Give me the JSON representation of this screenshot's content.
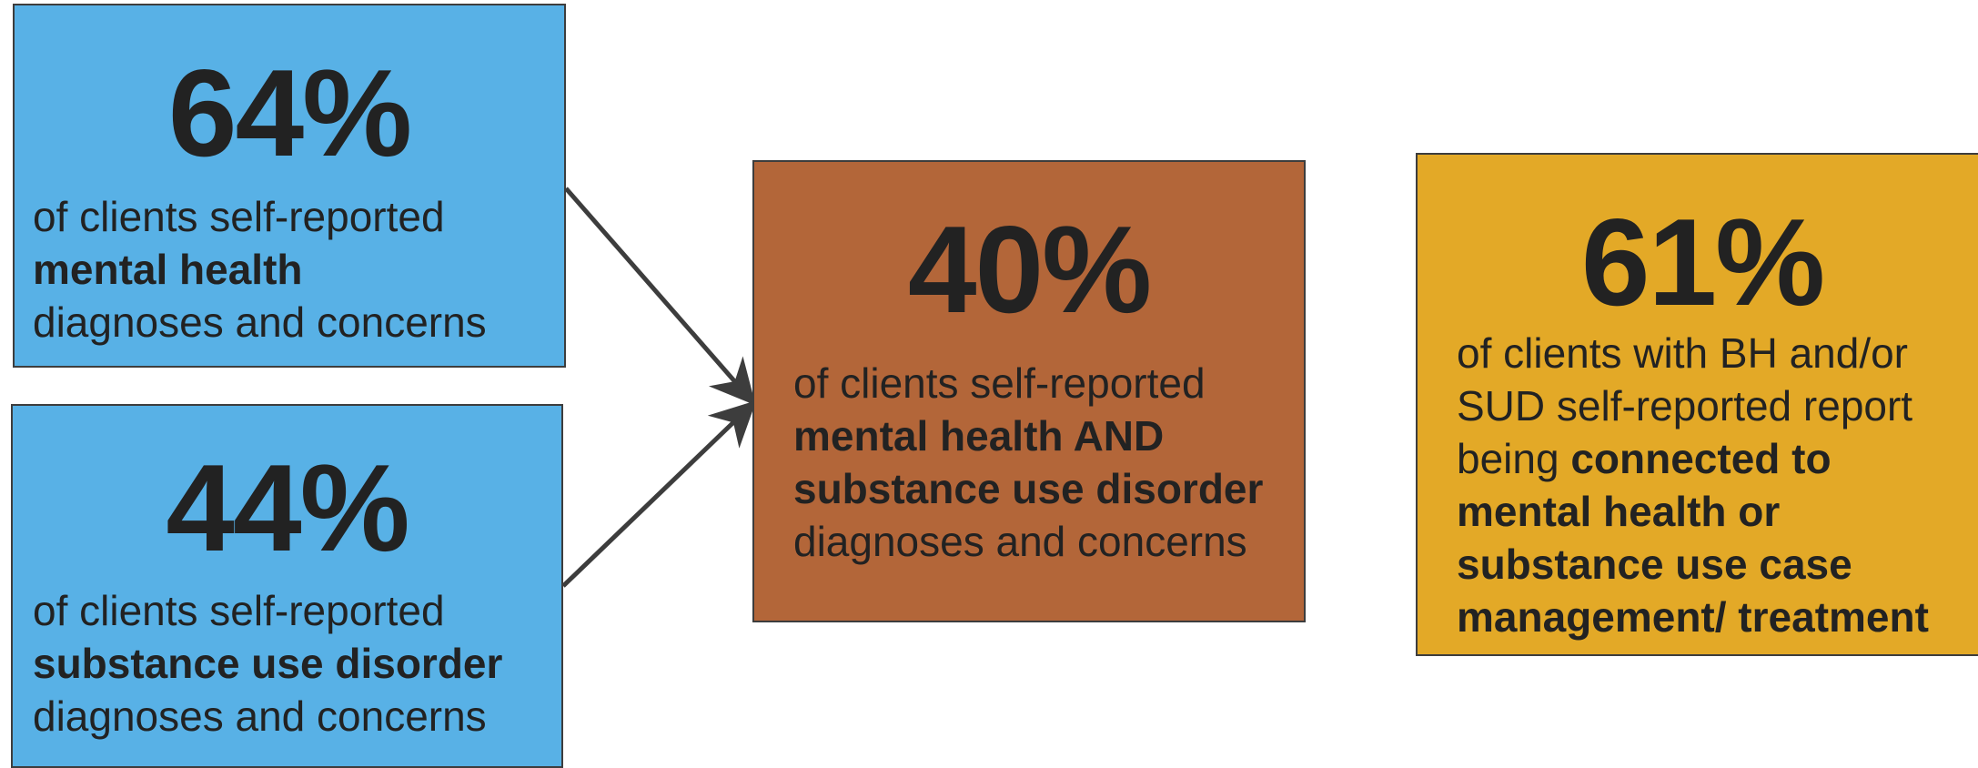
{
  "colors": {
    "blue": "#58b1e6",
    "brown": "#b36639",
    "gold": "#e3a927",
    "text": "#222222",
    "arrow": "#3d3d3d"
  },
  "boxes": {
    "mh": {
      "percent": "64%",
      "line1": "of clients self-reported",
      "bold": "mental health",
      "line3": "diagnoses and concerns"
    },
    "sud": {
      "percent": "44%",
      "line1": "of clients self-reported",
      "bold": "substance use disorder",
      "line3": "diagnoses and concerns"
    },
    "both": {
      "percent": "40%",
      "line1": "of clients self-reported",
      "bold": "mental health AND substance use disorder",
      "tail": "diagnoses and concerns"
    },
    "connected": {
      "percent": "61%",
      "line1": "of clients with BH and/or SUD self-reported report being",
      "bold": "connected to mental health or substance use case management/ treatment"
    }
  }
}
